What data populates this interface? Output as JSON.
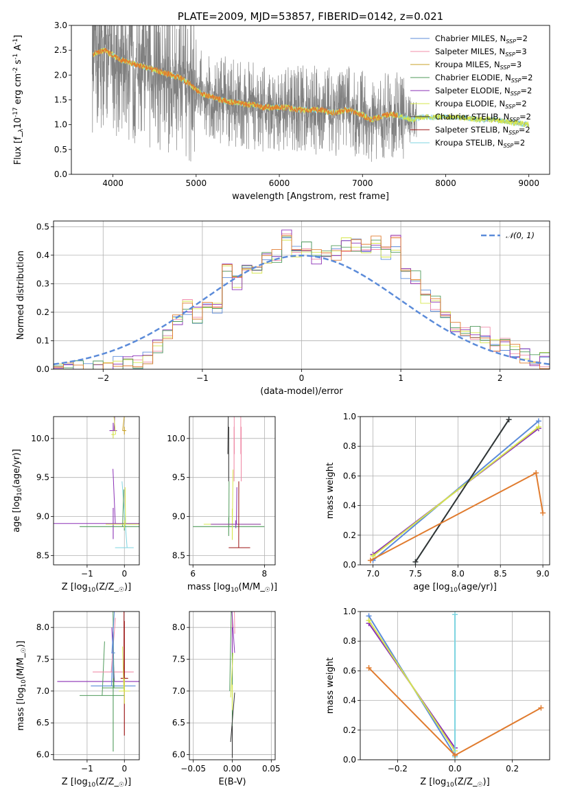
{
  "colors": {
    "chabrier_miles": "#5b8bd9",
    "salpeter_miles": "#f08ca8",
    "kroupa_miles": "#c9a227",
    "chabrier_elodie": "#4f9a5a",
    "salpeter_elodie": "#8a2fb5",
    "kroupa_elodie": "#d6e64a",
    "chabrier_stelib": "#333333",
    "salpeter_stelib": "#9b1010",
    "kroupa_stelib": "#7dd4e0",
    "spectrum": "#808080",
    "orange": "#e07b2e",
    "gaussian": "#5b8bd9"
  },
  "chart_data": [
    {
      "type": "line",
      "title": "PLATE=2009, MJD=53857, FIBERID=0142, z=0.021",
      "xlabel": "wavelength [Angstrom, rest frame]",
      "ylabel": "Flux [f$_\\lambda$10$^{-17}$ erg cm$^{-2}$ s$^{-1}$ A$^{-1}$]",
      "xlim": [
        3500,
        9250
      ],
      "ylim": [
        0,
        3.0
      ],
      "xticks": [
        4000,
        5000,
        6000,
        7000,
        8000,
        9000
      ],
      "yticks": [
        "0.0",
        "0.5",
        "1.0",
        "1.5",
        "2.0",
        "2.5",
        "3.0"
      ],
      "legend_position": "top-right",
      "series": [
        {
          "name": "Chabrier MILES, N_SSP=2",
          "key": "chabrier_miles"
        },
        {
          "name": "Salpeter MILES, N_SSP=3",
          "key": "salpeter_miles"
        },
        {
          "name": "Kroupa MILES, N_SSP=3",
          "key": "kroupa_miles"
        },
        {
          "name": "Chabrier ELODIE, N_SSP=2",
          "key": "chabrier_elodie"
        },
        {
          "name": "Salpeter ELODIE, N_SSP=2",
          "key": "salpeter_elodie"
        },
        {
          "name": "Kroupa ELODIE, N_SSP=2",
          "key": "kroupa_elodie"
        },
        {
          "name": "Chabrier STELIB, N_SSP=2",
          "key": "chabrier_stelib"
        },
        {
          "name": "Salpeter STELIB, N_SSP=2",
          "key": "salpeter_stelib"
        },
        {
          "name": "Kroupa STELIB, N_SSP=2",
          "key": "kroupa_stelib"
        }
      ],
      "model_continuum": [
        [
          3750,
          2.4
        ],
        [
          3800,
          2.45
        ],
        [
          3900,
          2.5
        ],
        [
          4000,
          2.4
        ],
        [
          4100,
          2.3
        ],
        [
          4200,
          2.25
        ],
        [
          4300,
          2.2
        ],
        [
          4400,
          2.15
        ],
        [
          4500,
          2.1
        ],
        [
          4600,
          2.05
        ],
        [
          4700,
          2.0
        ],
        [
          4800,
          1.95
        ],
        [
          4900,
          1.85
        ],
        [
          5000,
          1.7
        ],
        [
          5100,
          1.6
        ],
        [
          5200,
          1.55
        ],
        [
          5300,
          1.5
        ],
        [
          5400,
          1.45
        ],
        [
          5500,
          1.45
        ],
        [
          5600,
          1.4
        ],
        [
          5700,
          1.4
        ],
        [
          5800,
          1.35
        ],
        [
          5900,
          1.35
        ],
        [
          6000,
          1.35
        ],
        [
          6100,
          1.35
        ],
        [
          6200,
          1.3
        ],
        [
          6300,
          1.3
        ],
        [
          6400,
          1.3
        ],
        [
          6500,
          1.3
        ],
        [
          6600,
          1.25
        ],
        [
          6700,
          1.25
        ],
        [
          6800,
          1.3
        ],
        [
          6900,
          1.25
        ],
        [
          7000,
          1.2
        ],
        [
          7100,
          1.1
        ],
        [
          7200,
          1.15
        ],
        [
          7300,
          1.2
        ],
        [
          7400,
          1.2
        ],
        [
          7500,
          1.15
        ],
        [
          7600,
          1.1
        ],
        [
          7700,
          1.15
        ],
        [
          7800,
          1.15
        ],
        [
          7900,
          1.15
        ],
        [
          8000,
          1.15
        ],
        [
          8200,
          1.15
        ],
        [
          8400,
          1.1
        ],
        [
          8600,
          1.1
        ],
        [
          8800,
          1.05
        ],
        [
          9000,
          1.0
        ]
      ]
    },
    {
      "type": "bar",
      "xlabel": "(data-model)/error",
      "ylabel": "Normed distribution",
      "xlim": [
        -2.5,
        2.5
      ],
      "ylim": [
        0,
        0.52
      ],
      "xticks": [
        "−2",
        "−1",
        "0",
        "1",
        "2"
      ],
      "yticks": [
        "0.0",
        "0.1",
        "0.2",
        "0.3",
        "0.4",
        "0.5"
      ],
      "legend": [
        "𝒩(0, 1)"
      ],
      "legend_position": "top-right",
      "histogram_bin_width": 0.1,
      "histogram": [
        0.0,
        0.0,
        0.0,
        0.0,
        0.0,
        0.0,
        0.02,
        0.02,
        0.03,
        0.04,
        0.08,
        0.13,
        0.18,
        0.22,
        0.19,
        0.24,
        0.22,
        0.35,
        0.3,
        0.34,
        0.33,
        0.38,
        0.4,
        0.47,
        0.41,
        0.44,
        0.39,
        0.42,
        0.41,
        0.44,
        0.44,
        0.42,
        0.45,
        0.41,
        0.44,
        0.33,
        0.32,
        0.26,
        0.23,
        0.19,
        0.16,
        0.14,
        0.13,
        0.12,
        0.09,
        0.08,
        0.07,
        0.05,
        0.03,
        0.03
      ]
    },
    {
      "type": "scatter",
      "xlabel": "Z [log$_{10}$(Z/Z$_\\odot$)]",
      "ylabel": "age  [log$_{10}$(age/yr)]",
      "xlim": [
        -1.9,
        0.4
      ],
      "ylim": [
        8.38,
        10.28
      ],
      "xticks": [
        "−1",
        "0"
      ],
      "yticks": [
        "8.5",
        "9.0",
        "9.5",
        "10.0"
      ],
      "points": [
        {
          "x": 0.0,
          "y": 10.1,
          "xerr": 0.05,
          "yerr": 0.05,
          "key": "kroupa_miles"
        },
        {
          "x": 0.0,
          "y": 8.6,
          "xerr": 0.25,
          "yerr": 0.0,
          "key": "kroupa_stelib"
        },
        {
          "x": -0.3,
          "y": 8.91,
          "xerr": 1.6,
          "yerr": 0.2,
          "key": "salpeter_elodie"
        },
        {
          "x": -0.3,
          "y": 10.1,
          "xerr": 0.1,
          "yerr": 0.1,
          "key": "salpeter_elodie"
        },
        {
          "x": -0.3,
          "y": 10.05,
          "xerr": 0.05,
          "yerr": 0.05,
          "key": "kroupa_elodie"
        },
        {
          "x": 0.0,
          "y": 8.87,
          "xerr": 1.2,
          "yerr": 0.05,
          "key": "chabrier_elodie"
        },
        {
          "x": 0.0,
          "y": 8.9,
          "xerr": 0.5,
          "yerr": 0.05,
          "key": "kroupa_elodie"
        }
      ]
    },
    {
      "type": "scatter",
      "xlabel": "mass [log$_{10}$(M/M$_\\odot$)]",
      "ylabel": "",
      "xlim": [
        5.9,
        8.3
      ],
      "ylim": [
        8.38,
        10.28
      ],
      "xticks": [
        "6",
        "8"
      ],
      "yticks": [
        "8.5",
        "9.0",
        "9.5",
        "10.0"
      ],
      "points": [
        {
          "x": 7.0,
          "y": 8.87,
          "xerr": 1.0,
          "yerr": 0.12,
          "key": "chabrier_elodie"
        },
        {
          "x": 7.1,
          "y": 8.9,
          "xerr": 0.8,
          "yerr": 0.2,
          "key": "kroupa_elodie"
        },
        {
          "x": 7.2,
          "y": 8.9,
          "xerr": 0.7,
          "yerr": 0.05,
          "key": "salpeter_elodie"
        },
        {
          "x": 7.3,
          "y": 8.6,
          "xerr": 0.3,
          "yerr": 0.0,
          "key": "salpeter_stelib"
        },
        {
          "x": 7.0,
          "y": 9.8,
          "xerr": 0.0,
          "yerr": 0.35,
          "key": "chabrier_stelib"
        },
        {
          "x": 7.15,
          "y": 9.8,
          "xerr": 0.0,
          "yerr": 0.35,
          "key": "salpeter_miles"
        },
        {
          "x": 7.35,
          "y": 9.8,
          "xerr": 0.0,
          "yerr": 0.35,
          "key": "salpeter_miles"
        }
      ]
    },
    {
      "type": "line",
      "xlabel": "age  [log$_{10}$(age/yr)]",
      "ylabel": "mass weight",
      "xlim": [
        6.85,
        9.08
      ],
      "ylim": [
        0,
        1.0
      ],
      "xticks": [
        "7.0",
        "7.5",
        "8.0",
        "8.5",
        "9.0"
      ],
      "yticks": [
        "0.0",
        "0.2",
        "0.4",
        "0.6",
        "0.8",
        "1.0"
      ],
      "series": [
        {
          "key": "chabrier_miles",
          "points": [
            [
              7.0,
              0.03
            ],
            [
              8.95,
              0.97
            ]
          ]
        },
        {
          "key": "salpeter_elodie",
          "points": [
            [
              7.0,
              0.07
            ],
            [
              8.95,
              0.92
            ]
          ]
        },
        {
          "key": "kroupa_elodie",
          "points": [
            [
              7.0,
              0.06
            ],
            [
              8.95,
              0.93
            ]
          ]
        },
        {
          "key": "kroupa_stelib",
          "points": [
            [
              7.5,
              0.02
            ],
            [
              8.6,
              0.98
            ]
          ]
        },
        {
          "key": "chabrier_stelib",
          "points": [
            [
              7.5,
              0.02
            ],
            [
              8.6,
              0.98
            ]
          ]
        },
        {
          "key": "orange",
          "points": [
            [
              6.97,
              0.03
            ],
            [
              8.92,
              0.62
            ],
            [
              9.0,
              0.35
            ]
          ]
        }
      ]
    },
    {
      "type": "scatter",
      "xlabel": "Z [log$_{10}$(Z/Z$_\\odot$)]",
      "ylabel": "mass [log$_{10}$(M/M$_\\odot$)]",
      "xlim": [
        -1.9,
        0.4
      ],
      "ylim": [
        5.92,
        8.25
      ],
      "xticks": [
        "−1",
        "0"
      ],
      "yticks": [
        "6.0",
        "6.5",
        "7.0",
        "7.5",
        "8.0"
      ],
      "points": [
        {
          "x": -0.3,
          "y": 7.15,
          "xerr": 1.5,
          "yerr": 0.0,
          "key": "salpeter_elodie"
        },
        {
          "x": -0.6,
          "y": 6.93,
          "xerr": 0.6,
          "yerr": 0.0,
          "key": "chabrier_elodie"
        },
        {
          "x": -0.3,
          "y": 7.08,
          "xerr": 0.6,
          "yerr": 0.0,
          "key": "chabrier_miles"
        },
        {
          "x": -0.3,
          "y": 7.3,
          "xerr": 0.55,
          "yerr": 0.0,
          "key": "salpeter_miles"
        },
        {
          "x": -0.3,
          "y": 7.05,
          "xerr": 0.3,
          "yerr": 1.0,
          "key": "chabrier_elodie"
        },
        {
          "x": 0.0,
          "y": 7.2,
          "xerr": 0.1,
          "yerr": 0.9,
          "key": "salpeter_stelib"
        },
        {
          "x": 0.0,
          "y": 7.0,
          "xerr": 0.15,
          "yerr": 0.2,
          "key": "kroupa_elodie"
        },
        {
          "x": -0.3,
          "y": 7.6,
          "xerr": 0.05,
          "yerr": 0.4,
          "key": "chabrier_miles"
        }
      ]
    },
    {
      "type": "scatter",
      "xlabel": "E(B-V)",
      "ylabel": "",
      "xlim": [
        -0.055,
        0.055
      ],
      "ylim": [
        5.92,
        8.25
      ],
      "xticks": [
        "−0.05",
        "0.00",
        "0.05"
      ],
      "yticks": [
        "6.0",
        "6.5",
        "7.0",
        "7.5",
        "8.0"
      ],
      "points": [
        {
          "x": 0.0,
          "y": 7.9,
          "xerr": 0.0,
          "yerr": 0.3,
          "key": "salpeter_miles"
        },
        {
          "x": 0.0,
          "y": 7.6,
          "xerr": 0.0,
          "yerr": 0.4,
          "key": "salpeter_elodie"
        },
        {
          "x": 0.0,
          "y": 7.0,
          "xerr": 0.0,
          "yerr": 0.6,
          "key": "chabrier_elodie"
        },
        {
          "x": 0.0,
          "y": 6.2,
          "xerr": 0.0,
          "yerr": 0.25,
          "key": "chabrier_stelib"
        },
        {
          "x": 0.0,
          "y": 6.9,
          "xerr": 0.0,
          "yerr": 0.2,
          "key": "kroupa_elodie"
        }
      ]
    },
    {
      "type": "line",
      "xlabel": "Z [log$_{10}$(Z/Z$_\\odot$)]",
      "ylabel": "mass weight",
      "xlim": [
        -0.33,
        0.33
      ],
      "ylim": [
        0,
        1.0
      ],
      "xticks": [
        "−0.2",
        "0.0",
        "0.2"
      ],
      "yticks": [
        "0.0",
        "0.2",
        "0.4",
        "0.6",
        "0.8",
        "1.0"
      ],
      "series": [
        {
          "key": "chabrier_miles",
          "points": [
            [
              -0.3,
              0.97
            ],
            [
              0.0,
              0.03
            ]
          ]
        },
        {
          "key": "salpeter_elodie",
          "points": [
            [
              -0.3,
              0.92
            ],
            [
              0.0,
              0.08
            ]
          ]
        },
        {
          "key": "kroupa_elodie",
          "points": [
            [
              -0.3,
              0.94
            ],
            [
              0.0,
              0.06
            ]
          ]
        },
        {
          "key": "kroupa_stelib",
          "points": [
            [
              0.0,
              0.02
            ],
            [
              0.0,
              0.98
            ]
          ]
        },
        {
          "key": "orange",
          "points": [
            [
              -0.3,
              0.62
            ],
            [
              0.0,
              0.03
            ],
            [
              0.3,
              0.35
            ]
          ]
        }
      ]
    }
  ]
}
